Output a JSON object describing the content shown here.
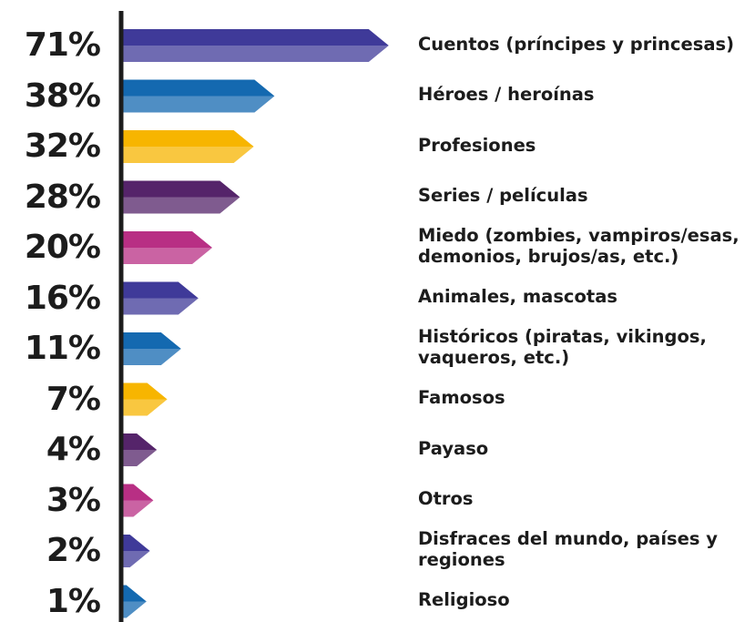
{
  "chart_data": {
    "type": "arrow-bar",
    "categories": [
      "Cuentos (príncipes y princesas)",
      "Héroes / heroínas",
      "Profesiones",
      "Series / películas",
      "Miedo (zombies, vampiros/esas, demonios, brujos/as, etc.)",
      "Animales, mascotas",
      "Históricos (piratas, vikingos, vaqueros, etc.)",
      "Famosos",
      "Payaso",
      "Otros",
      "Disfraces del mundo, países y regiones",
      "Religioso"
    ],
    "values": [
      71,
      38,
      32,
      28,
      20,
      16,
      11,
      7,
      4,
      3,
      2,
      1
    ],
    "value_labels": [
      "71%",
      "38%",
      "32%",
      "28%",
      "20%",
      "16%",
      "11%",
      "7%",
      "4%",
      "3%",
      "2%",
      "1%"
    ],
    "colors": [
      "#3f3a99",
      "#1469b0",
      "#f7b500",
      "#55246a",
      "#b82f84",
      "#3f3a99",
      "#1469b0",
      "#f7b500",
      "#55246a",
      "#b82f84",
      "#3f3a99",
      "#1469b0"
    ]
  }
}
